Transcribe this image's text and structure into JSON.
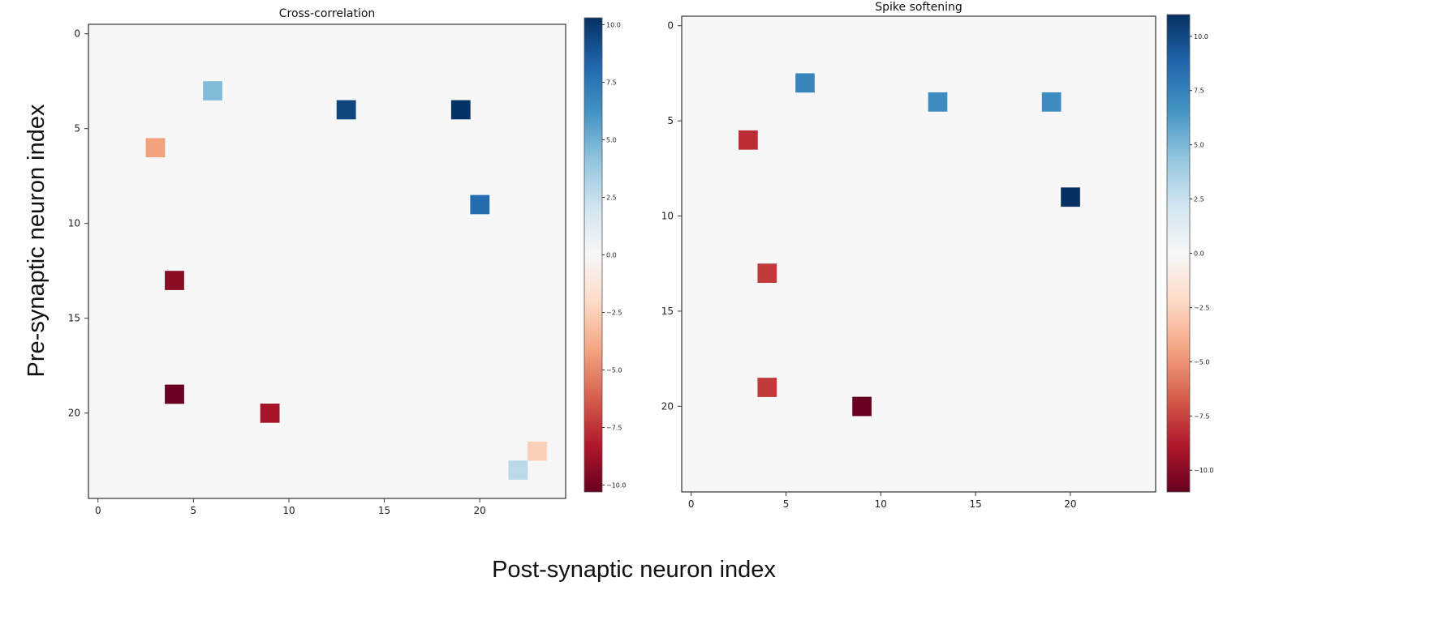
{
  "figure": {
    "ylabel": "Pre-synaptic neuron index",
    "xlabel": "Post-synaptic neuron index"
  },
  "chart_data": [
    {
      "type": "heatmap",
      "title": "Cross-correlation",
      "colormap": "RdBu",
      "rows": 25,
      "cols": 25,
      "xticks": [
        0,
        5,
        10,
        15,
        20
      ],
      "yticks": [
        0,
        5,
        10,
        15,
        20
      ],
      "xtick_labels": [
        "0",
        "5",
        "10",
        "15",
        "20"
      ],
      "ytick_labels": [
        "0",
        "5",
        "10",
        "15",
        "20"
      ],
      "vlim": [
        -10.3,
        10.3
      ],
      "colorbar_ticks": [
        10.0,
        7.5,
        5.0,
        2.5,
        0.0,
        -2.5,
        -5.0,
        -7.5,
        -10.0
      ],
      "colorbar_tick_labels": [
        "10.0",
        "7.5",
        "5.0",
        "2.5",
        "0.0",
        "−2.5",
        "−5.0",
        "−7.5",
        "−10.0"
      ],
      "background_value": 0,
      "cells": [
        {
          "row": 3,
          "col": 6,
          "value": 4.5
        },
        {
          "row": 4,
          "col": 13,
          "value": 9.5
        },
        {
          "row": 4,
          "col": 19,
          "value": 10.2
        },
        {
          "row": 6,
          "col": 3,
          "value": -4.2
        },
        {
          "row": 9,
          "col": 20,
          "value": 8.0
        },
        {
          "row": 13,
          "col": 4,
          "value": -9.3
        },
        {
          "row": 19,
          "col": 4,
          "value": -10.2
        },
        {
          "row": 20,
          "col": 9,
          "value": -8.6
        },
        {
          "row": 22,
          "col": 23,
          "value": -2.5
        },
        {
          "row": 23,
          "col": 22,
          "value": 2.8
        }
      ]
    },
    {
      "type": "heatmap",
      "title": "Spike softening",
      "colormap": "RdBu",
      "rows": 25,
      "cols": 25,
      "xticks": [
        0,
        5,
        10,
        15,
        20
      ],
      "yticks": [
        0,
        5,
        10,
        15,
        20
      ],
      "xtick_labels": [
        "0",
        "5",
        "10",
        "15",
        "20"
      ],
      "ytick_labels": [
        "0",
        "5",
        "10",
        "15",
        "20"
      ],
      "vlim": [
        -11,
        11
      ],
      "colorbar_ticks": [
        10.0,
        7.5,
        5.0,
        2.5,
        0.0,
        -2.5,
        -5.0,
        -7.5,
        -10.0
      ],
      "colorbar_tick_labels": [
        "10.0",
        "7.5",
        "5.0",
        "2.5",
        "0.0",
        "−2.5",
        "−5.0",
        "−7.5",
        "−10.0"
      ],
      "background_value": 0,
      "cells": [
        {
          "row": 3,
          "col": 6,
          "value": 7.3
        },
        {
          "row": 4,
          "col": 13,
          "value": 7.0
        },
        {
          "row": 4,
          "col": 19,
          "value": 7.0
        },
        {
          "row": 6,
          "col": 3,
          "value": -8.2
        },
        {
          "row": 9,
          "col": 20,
          "value": 11.0
        },
        {
          "row": 13,
          "col": 4,
          "value": -7.8
        },
        {
          "row": 19,
          "col": 4,
          "value": -7.8
        },
        {
          "row": 20,
          "col": 9,
          "value": -11.0
        }
      ]
    }
  ]
}
